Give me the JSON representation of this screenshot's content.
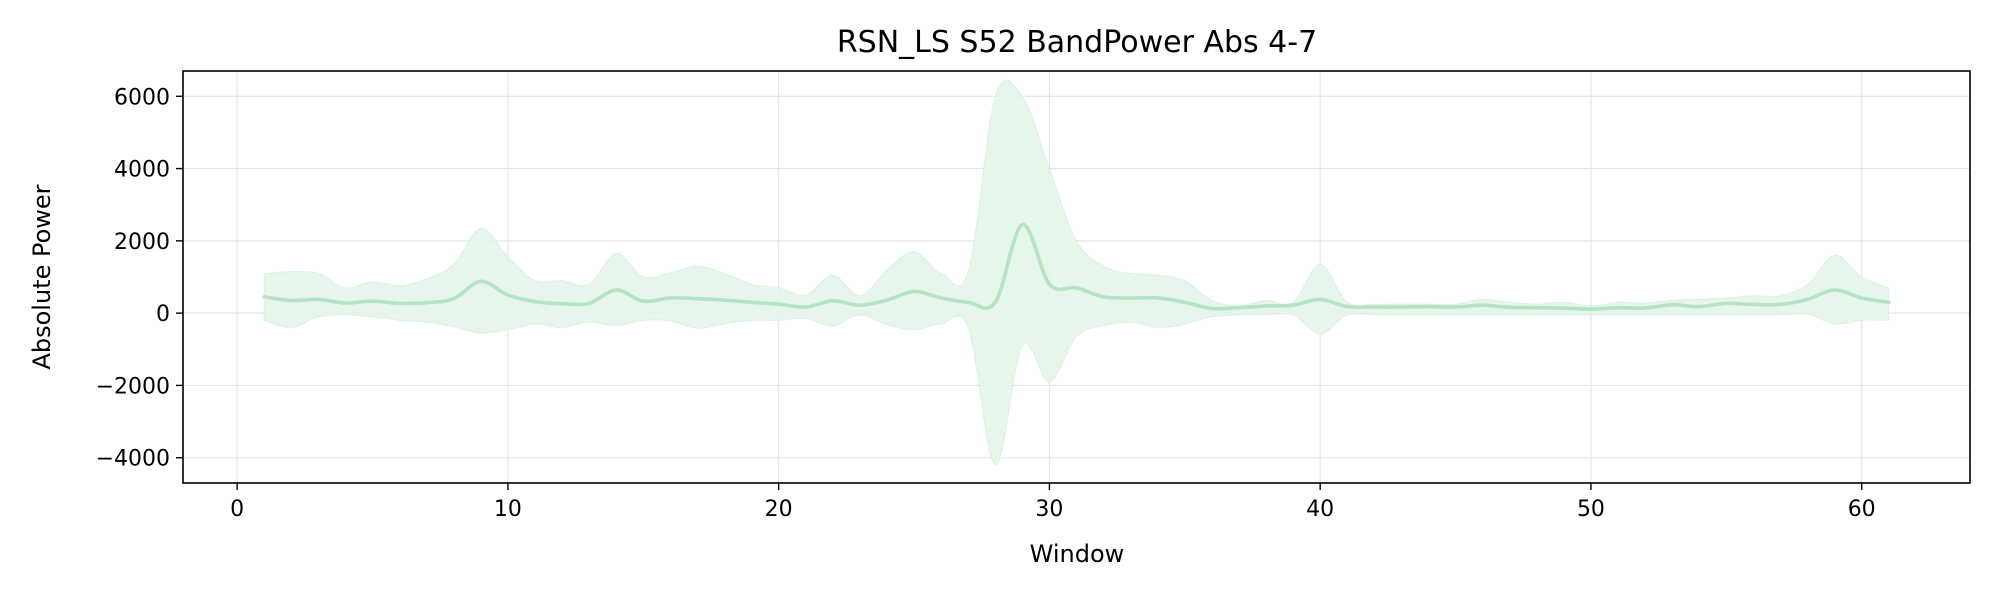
{
  "chart_data": {
    "type": "line",
    "title": "RSN_LS S52 BandPower Abs 4-7",
    "xlabel": "Window",
    "ylabel": "Absolute Power",
    "xlim": [
      -2,
      64
    ],
    "ylim": [
      -4700,
      6700
    ],
    "xticks": [
      0,
      10,
      20,
      30,
      40,
      50,
      60
    ],
    "yticks": [
      -4000,
      -2000,
      0,
      2000,
      4000,
      6000
    ],
    "xtick_labels": [
      "0",
      "10",
      "20",
      "30",
      "40",
      "50",
      "60"
    ],
    "ytick_labels": [
      "−4000",
      "−2000",
      "0",
      "2000",
      "4000",
      "6000"
    ],
    "grid": true,
    "colors": {
      "line": "#b5e3c4",
      "band": "#e3f4e8"
    },
    "series": [
      {
        "x": [
          1,
          2,
          3,
          4,
          5,
          6,
          7,
          8,
          9,
          10,
          11,
          12,
          13,
          14,
          15,
          16,
          17,
          18,
          19,
          20,
          21,
          22,
          23,
          24,
          25,
          26,
          27,
          28,
          29,
          30,
          31,
          32,
          33,
          34,
          35,
          36,
          37,
          38,
          39,
          40,
          41,
          42,
          43,
          44,
          45,
          46,
          47,
          48,
          49,
          50,
          51,
          52,
          53,
          54,
          55,
          56,
          57,
          58,
          59,
          60,
          61
        ],
        "mean": [
          450,
          350,
          380,
          280,
          330,
          270,
          290,
          400,
          880,
          500,
          320,
          260,
          270,
          640,
          330,
          420,
          400,
          360,
          300,
          250,
          170,
          340,
          220,
          360,
          600,
          420,
          300,
          300,
          2450,
          800,
          700,
          450,
          420,
          420,
          300,
          130,
          150,
          200,
          220,
          380,
          180,
          170,
          170,
          180,
          170,
          220,
          160,
          150,
          140,
          110,
          150,
          140,
          230,
          180,
          270,
          240,
          240,
          380,
          640,
          420,
          300
        ],
        "upper": [
          1100,
          1150,
          1100,
          700,
          870,
          760,
          950,
          1350,
          2350,
          1560,
          900,
          900,
          800,
          1650,
          1000,
          1120,
          1300,
          1100,
          800,
          700,
          500,
          1050,
          480,
          1200,
          1700,
          1100,
          1150,
          6000,
          6000,
          4000,
          2000,
          1300,
          1100,
          1050,
          900,
          350,
          200,
          350,
          300,
          1350,
          300,
          250,
          250,
          250,
          250,
          380,
          300,
          250,
          300,
          200,
          300,
          280,
          350,
          380,
          420,
          480,
          480,
          800,
          1600,
          1000,
          700
        ],
        "lower": [
          -200,
          -400,
          -100,
          -50,
          -100,
          -200,
          -250,
          -380,
          -550,
          -460,
          -300,
          -400,
          -250,
          -350,
          -200,
          -220,
          -420,
          -300,
          -200,
          -200,
          -150,
          -350,
          -50,
          -320,
          -460,
          -300,
          -400,
          -4200,
          -900,
          -1900,
          -650,
          -350,
          -250,
          -400,
          -300,
          -100,
          -50,
          -50,
          -50,
          -580,
          -50,
          -50,
          -50,
          -50,
          -50,
          -50,
          -50,
          -50,
          -50,
          -50,
          -50,
          -50,
          -50,
          -50,
          -50,
          -50,
          -50,
          -30,
          -300,
          -200,
          -200
        ]
      }
    ]
  }
}
